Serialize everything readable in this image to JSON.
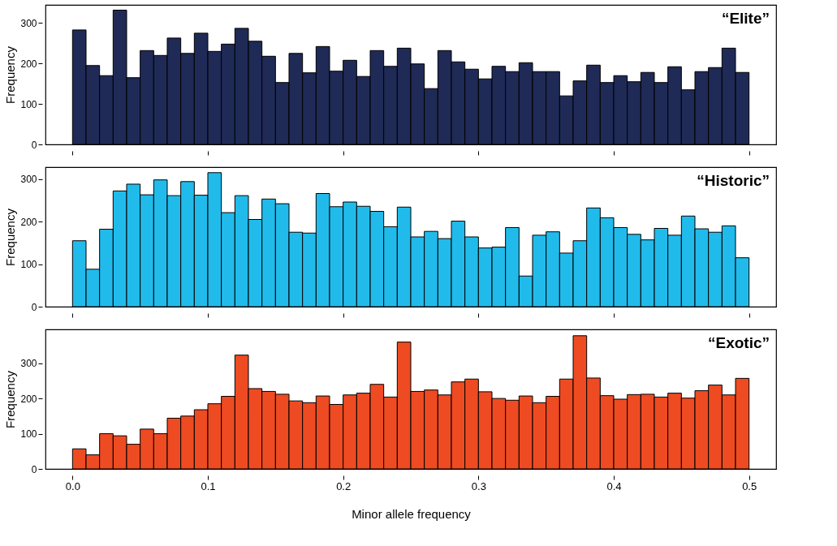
{
  "chart_data": [
    {
      "type": "histogram",
      "annotations": [
        "“Elite”"
      ],
      "ylabel": "Frequency",
      "color": "#1f2a56",
      "tick_labels": "y",
      "bins": [
        0,
        0.01,
        0.02,
        0.03,
        0.04,
        0.05,
        0.06,
        0.07,
        0.08,
        0.09,
        0.1,
        0.11,
        0.12,
        0.13,
        0.14,
        0.15,
        0.16,
        0.17,
        0.18,
        0.19,
        0.2,
        0.21,
        0.22,
        0.23,
        0.24,
        0.25,
        0.26,
        0.27,
        0.28,
        0.29,
        0.3,
        0.31,
        0.32,
        0.33,
        0.34,
        0.35,
        0.36,
        0.37,
        0.38,
        0.39,
        0.4,
        0.41,
        0.42,
        0.43,
        0.44,
        0.45,
        0.46,
        0.47,
        0.48,
        0.49,
        0.5
      ],
      "values": [
        283,
        195,
        170,
        332,
        165,
        232,
        220,
        263,
        225,
        275,
        230,
        248,
        287,
        255,
        218,
        153,
        225,
        177,
        242,
        181,
        208,
        168,
        232,
        193,
        238,
        199,
        138,
        232,
        204,
        186,
        162,
        193,
        180,
        202,
        180,
        180,
        120,
        157,
        196,
        153,
        170,
        155,
        178,
        153,
        192,
        135,
        180,
        190,
        238,
        178
      ],
      "xlim": [
        -0.02,
        0.52
      ],
      "xticks": [
        0,
        0.1,
        0.2,
        0.3,
        0.4,
        0.5
      ],
      "ylim": [
        0,
        345
      ],
      "yticks": [
        0,
        100,
        200,
        300
      ]
    },
    {
      "type": "histogram",
      "annotations": [
        "“Historic”"
      ],
      "ylabel": "Frequency",
      "color": "#21bbeb",
      "tick_labels": "y",
      "bins": [
        0,
        0.01,
        0.02,
        0.03,
        0.04,
        0.05,
        0.06,
        0.07,
        0.08,
        0.09,
        0.1,
        0.11,
        0.12,
        0.13,
        0.14,
        0.15,
        0.16,
        0.17,
        0.18,
        0.19,
        0.2,
        0.21,
        0.22,
        0.23,
        0.24,
        0.25,
        0.26,
        0.27,
        0.28,
        0.29,
        0.3,
        0.31,
        0.32,
        0.33,
        0.34,
        0.35,
        0.36,
        0.37,
        0.38,
        0.39,
        0.4,
        0.41,
        0.42,
        0.43,
        0.44,
        0.45,
        0.46,
        0.47,
        0.48,
        0.49,
        0.5
      ],
      "values": [
        155,
        88,
        182,
        272,
        288,
        263,
        298,
        261,
        294,
        262,
        315,
        221,
        261,
        205,
        253,
        242,
        175,
        173,
        266,
        235,
        246,
        236,
        224,
        188,
        234,
        164,
        177,
        160,
        201,
        164,
        138,
        140,
        186,
        72,
        168,
        176,
        126,
        155,
        232,
        209,
        186,
        170,
        157,
        184,
        168,
        213,
        183,
        175,
        190,
        115
      ],
      "xlim": [
        -0.02,
        0.52
      ],
      "xticks": [
        0,
        0.1,
        0.2,
        0.3,
        0.4,
        0.5
      ],
      "ylim": [
        0,
        328
      ],
      "yticks": [
        0,
        100,
        200,
        300
      ]
    },
    {
      "type": "histogram",
      "annotations": [
        "“Exotic”"
      ],
      "ylabel": "Frequency",
      "xlabel": "Minor allele frequency",
      "color": "#ee4b22",
      "bins": [
        0,
        0.01,
        0.02,
        0.03,
        0.04,
        0.05,
        0.06,
        0.07,
        0.08,
        0.09,
        0.1,
        0.11,
        0.12,
        0.13,
        0.14,
        0.15,
        0.16,
        0.17,
        0.18,
        0.19,
        0.2,
        0.21,
        0.22,
        0.23,
        0.24,
        0.25,
        0.26,
        0.27,
        0.28,
        0.29,
        0.3,
        0.31,
        0.32,
        0.33,
        0.34,
        0.35,
        0.36,
        0.37,
        0.38,
        0.39,
        0.4,
        0.41,
        0.42,
        0.43,
        0.44,
        0.45,
        0.46,
        0.47,
        0.48,
        0.49,
        0.5
      ],
      "values": [
        57,
        40,
        100,
        94,
        70,
        113,
        100,
        144,
        150,
        168,
        185,
        206,
        323,
        228,
        220,
        212,
        193,
        188,
        207,
        183,
        210,
        215,
        240,
        204,
        360,
        220,
        224,
        210,
        247,
        255,
        219,
        200,
        195,
        207,
        188,
        206,
        255,
        378,
        258,
        208,
        198,
        211,
        212,
        204,
        215,
        201,
        222,
        238,
        210,
        257
      ],
      "xlim": [
        -0.02,
        0.52
      ],
      "xticks": [
        {
          "value": 0,
          "label": "0.0"
        },
        0.1,
        0.2,
        0.3,
        0.4,
        0.5
      ],
      "ylim": [
        0,
        396
      ],
      "yticks": [
        0,
        100,
        200,
        300
      ]
    }
  ]
}
